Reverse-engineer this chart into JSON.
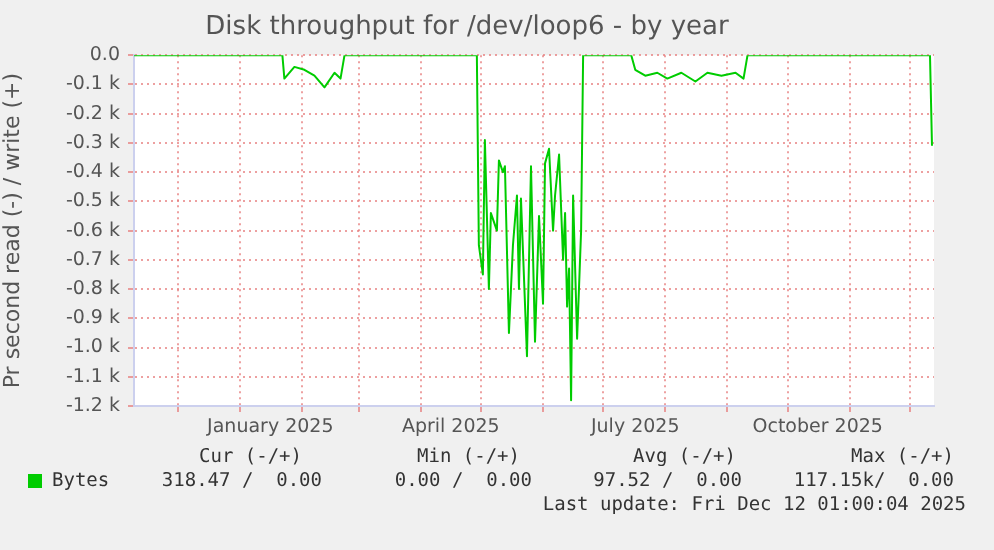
{
  "chart_data": {
    "type": "line",
    "title": "Disk throughput for /dev/loop6 - by year",
    "ylabel": "Pr second read (-) / write (+)",
    "xlim": [
      "2024-11-09",
      "2025-12-13"
    ],
    "xticks": [
      {
        "value": "2024-12-01",
        "label": null
      },
      {
        "value": "2025-01-01",
        "label": null
      },
      {
        "value": "2025-01-16",
        "label": "January 2025"
      },
      {
        "value": "2025-02-01",
        "label": null
      },
      {
        "value": "2025-03-01",
        "label": null
      },
      {
        "value": "2025-04-01",
        "label": null
      },
      {
        "value": "2025-04-16",
        "label": "April 2025"
      },
      {
        "value": "2025-05-01",
        "label": null
      },
      {
        "value": "2025-06-01",
        "label": null
      },
      {
        "value": "2025-07-01",
        "label": null
      },
      {
        "value": "2025-07-17",
        "label": "July 2025"
      },
      {
        "value": "2025-08-01",
        "label": null
      },
      {
        "value": "2025-09-01",
        "label": null
      },
      {
        "value": "2025-10-01",
        "label": null
      },
      {
        "value": "2025-10-16",
        "label": "October 2025"
      },
      {
        "value": "2025-11-01",
        "label": null
      },
      {
        "value": "2025-12-01",
        "label": null
      }
    ],
    "ylim": [
      -1.2,
      0
    ],
    "yticks": [
      {
        "value": -1.2,
        "label": "-1.2 k"
      },
      {
        "value": -1.1,
        "label": "-1.1 k"
      },
      {
        "value": -1.0,
        "label": "-1.0 k"
      },
      {
        "value": -0.9,
        "label": "-0.9 k"
      },
      {
        "value": -0.8,
        "label": "-0.8 k"
      },
      {
        "value": -0.7,
        "label": "-0.7 k"
      },
      {
        "value": -0.6,
        "label": "-0.6 k"
      },
      {
        "value": -0.5,
        "label": "-0.5 k"
      },
      {
        "value": -0.4,
        "label": "-0.4 k"
      },
      {
        "value": -0.3,
        "label": "-0.3 k"
      },
      {
        "value": -0.2,
        "label": "-0.2 k"
      },
      {
        "value": -0.1,
        "label": "-0.1 k"
      },
      {
        "value": 0,
        "label": "0.0"
      }
    ],
    "grid": true,
    "legend": "bottom",
    "series": [
      {
        "name": "Bytes",
        "color": "#00cc00",
        "x": [
          "2024-11-09",
          "2025-01-22",
          "2025-01-23",
          "2025-01-28",
          "2025-02-02",
          "2025-02-07",
          "2025-02-12",
          "2025-02-17",
          "2025-02-20",
          "2025-02-22",
          "2025-04-29",
          "2025-04-30",
          "2025-05-02",
          "2025-05-03",
          "2025-05-05",
          "2025-05-06",
          "2025-05-09",
          "2025-05-10",
          "2025-05-12",
          "2025-05-13",
          "2025-05-15",
          "2025-05-17",
          "2025-05-19",
          "2025-05-20",
          "2025-05-21",
          "2025-05-24",
          "2025-05-26",
          "2025-05-28",
          "2025-05-30",
          "2025-06-01",
          "2025-06-02",
          "2025-06-04",
          "2025-06-06",
          "2025-06-07",
          "2025-06-09",
          "2025-06-11",
          "2025-06-12",
          "2025-06-13",
          "2025-06-14",
          "2025-06-15",
          "2025-06-16",
          "2025-06-18",
          "2025-06-20",
          "2025-06-21",
          "2025-07-15",
          "2025-07-17",
          "2025-07-22",
          "2025-07-28",
          "2025-08-02",
          "2025-08-09",
          "2025-08-16",
          "2025-08-22",
          "2025-08-29",
          "2025-09-05",
          "2025-09-09",
          "2025-09-11",
          "2025-12-11",
          "2025-12-12"
        ],
        "values": [
          0,
          0,
          -0.08,
          -0.04,
          -0.05,
          -0.07,
          -0.11,
          -0.06,
          -0.08,
          0,
          0,
          -0.65,
          -0.75,
          -0.29,
          -0.8,
          -0.54,
          -0.6,
          -0.36,
          -0.4,
          -0.38,
          -0.95,
          -0.65,
          -0.48,
          -0.8,
          -0.49,
          -1.03,
          -0.38,
          -0.98,
          -0.55,
          -0.85,
          -0.37,
          -0.32,
          -0.6,
          -0.48,
          -0.34,
          -0.7,
          -0.54,
          -0.86,
          -0.73,
          -1.18,
          -0.48,
          -0.97,
          -0.6,
          0,
          0,
          -0.05,
          -0.07,
          -0.06,
          -0.08,
          -0.06,
          -0.09,
          -0.06,
          -0.07,
          -0.06,
          -0.08,
          0,
          0,
          -0.31
        ]
      }
    ],
    "annotations": [
      "Cur (-/+)",
      "Min (-/+)",
      "Avg (-/+)",
      "Max (-/+)",
      "318.47 /  0.00",
      "0.00 /  0.00",
      "97.52 /  0.00",
      "117.15k/  0.00",
      "Last update: Fri Dec 12 01:00:04 2025"
    ]
  }
}
